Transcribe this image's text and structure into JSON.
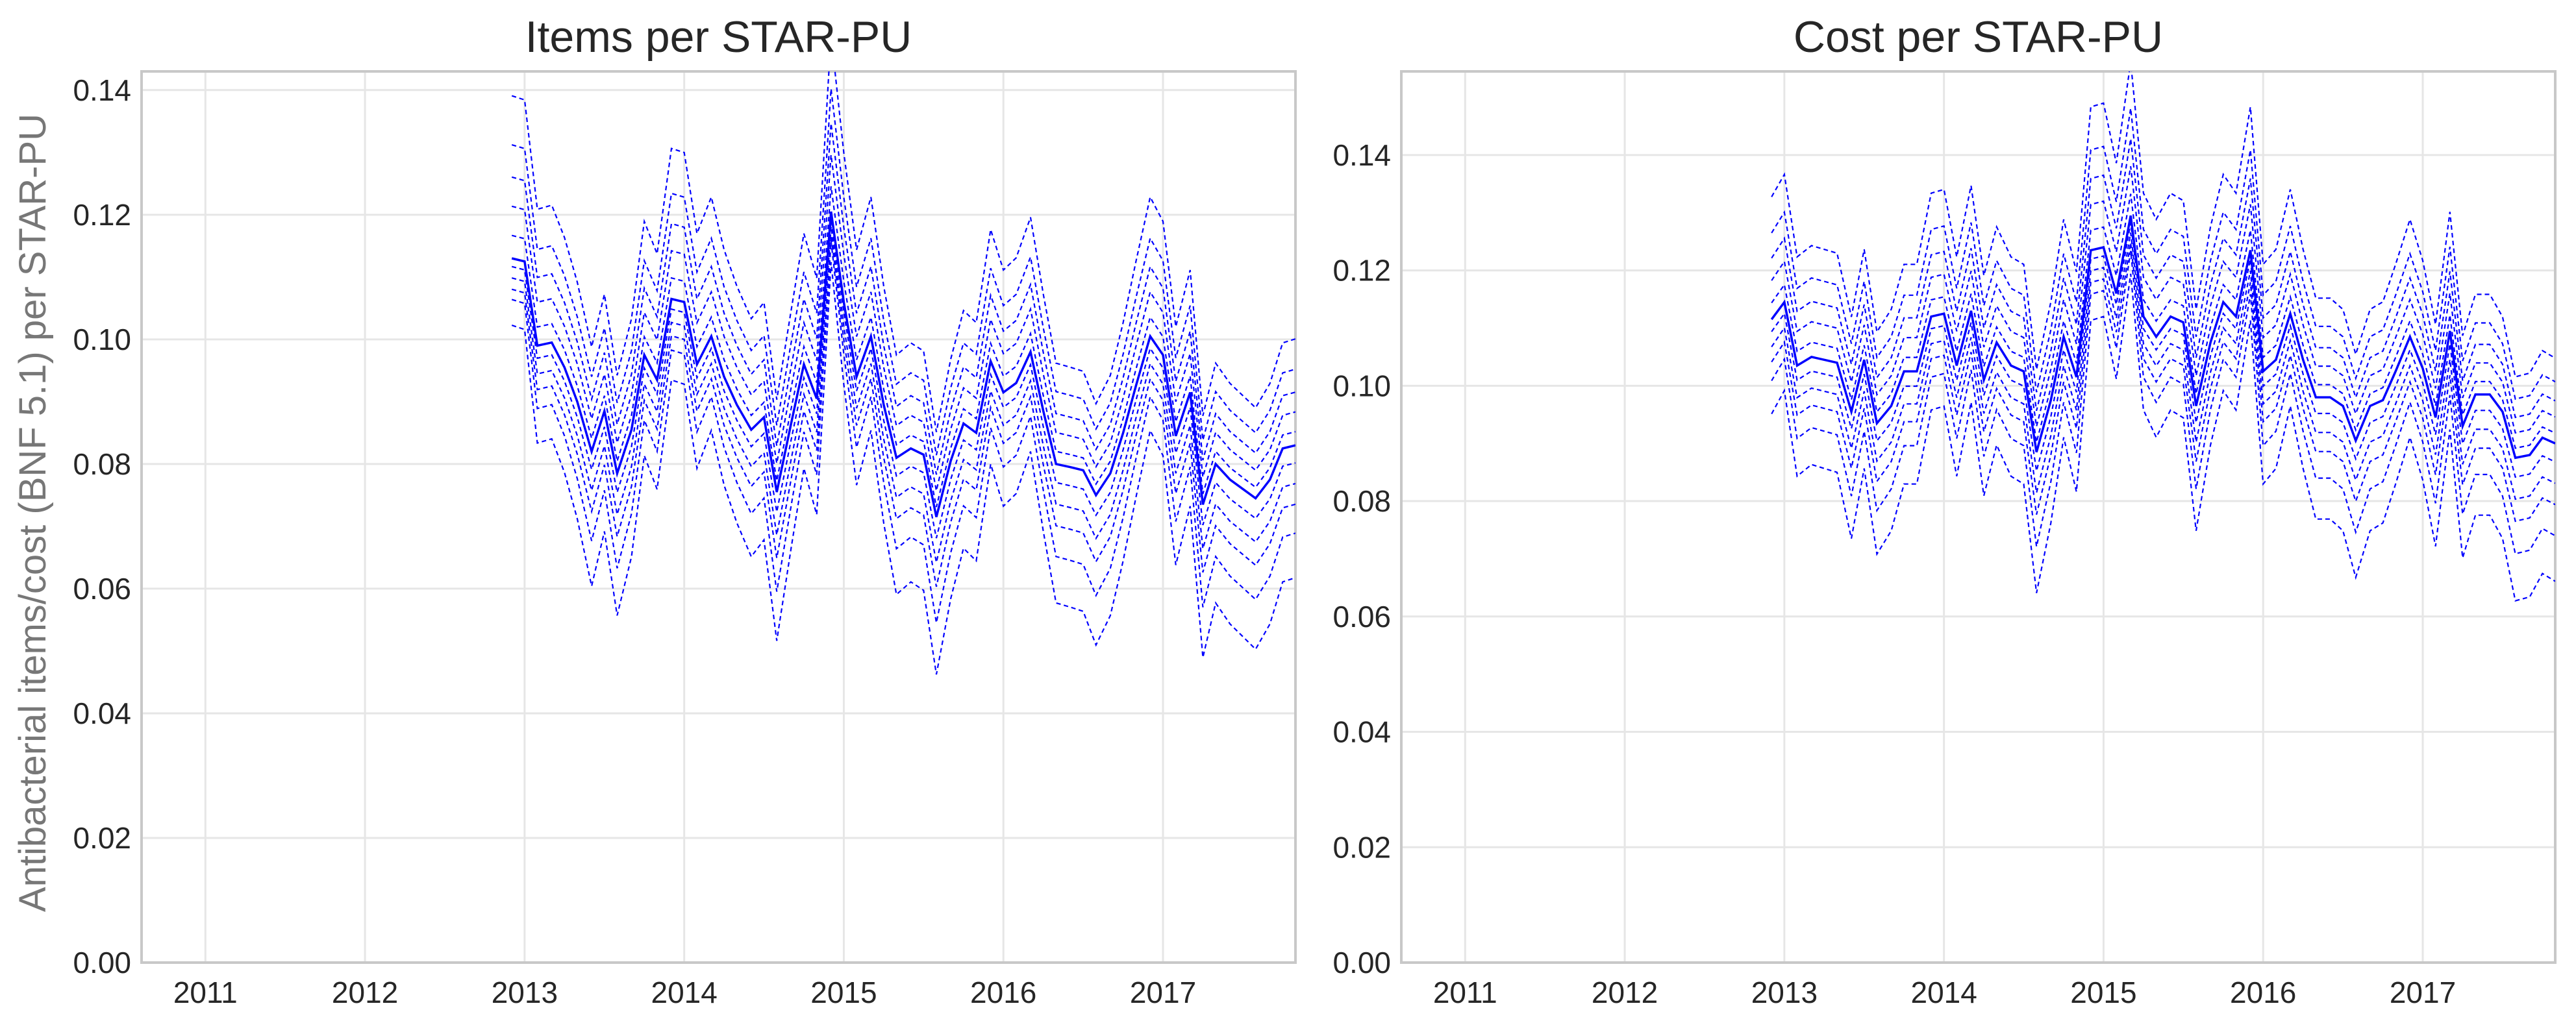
{
  "figure": {
    "ylabel": "Antibacterial items/cost (BNF 5.1) per STAR-PU"
  },
  "colors": {
    "series": "#0000ff",
    "grid": "#e6e6e6",
    "frame": "#c8c8c8",
    "text": "#262626",
    "ylabel": "#777777"
  },
  "chart_data": [
    {
      "type": "line",
      "title": "Items per STAR-PU",
      "xlabel": "",
      "ylabel": "Antibacterial items/cost (BNF 5.1) per STAR-PU",
      "xlim": [
        2010.6,
        2017.83
      ],
      "ylim": [
        0,
        0.143
      ],
      "x_ticks": [
        2011,
        2012,
        2013,
        2014,
        2015,
        2016,
        2017
      ],
      "x_tick_labels": [
        "2011",
        "2012",
        "2013",
        "2014",
        "2015",
        "2016",
        "2017"
      ],
      "y_ticks": [
        0,
        0.02,
        0.04,
        0.06,
        0.08,
        0.1,
        0.12,
        0.14
      ],
      "y_tick_labels": [
        "0.00",
        "0.02",
        "0.04",
        "0.06",
        "0.08",
        "0.10",
        "0.12",
        "0.14"
      ],
      "grid": true,
      "legend": "none",
      "x": [
        2012.92,
        2013.0,
        2013.08,
        2013.17,
        2013.25,
        2013.33,
        2013.42,
        2013.5,
        2013.58,
        2013.67,
        2013.75,
        2013.83,
        2013.92,
        2014.0,
        2014.08,
        2014.17,
        2014.25,
        2014.33,
        2014.42,
        2014.5,
        2014.58,
        2014.67,
        2014.75,
        2014.83,
        2014.92,
        2015.0,
        2015.08,
        2015.17,
        2015.25,
        2015.33,
        2015.42,
        2015.5,
        2015.58,
        2015.67,
        2015.75,
        2015.83,
        2015.92,
        2016.0,
        2016.08,
        2016.17,
        2016.25,
        2016.33,
        2016.42,
        2016.5,
        2016.58,
        2016.67,
        2016.75,
        2016.83,
        2016.92,
        2017.0,
        2017.08,
        2017.17,
        2017.25,
        2017.33,
        2017.42,
        2017.5,
        2017.58,
        2017.67,
        2017.75,
        2017.83
      ],
      "median": [
        0.113,
        0.1125,
        0.099,
        0.0995,
        0.0955,
        0.09,
        0.082,
        0.0885,
        0.0785,
        0.0855,
        0.0975,
        0.0935,
        0.1065,
        0.106,
        0.096,
        0.1005,
        0.094,
        0.0895,
        0.0855,
        0.0875,
        0.0755,
        0.0865,
        0.096,
        0.0905,
        0.1205,
        0.106,
        0.094,
        0.1005,
        0.0895,
        0.081,
        0.0825,
        0.0815,
        0.0715,
        0.0805,
        0.0865,
        0.085,
        0.0965,
        0.0915,
        0.093,
        0.098,
        0.0885,
        0.08,
        0.0795,
        0.079,
        0.075,
        0.0785,
        0.085,
        0.0925,
        0.1005,
        0.0975,
        0.0845,
        0.0915,
        0.0735,
        0.08,
        0.0775,
        0.076,
        0.0745,
        0.0775,
        0.0825,
        0.083
      ],
      "deciles": [
        {
          "offset": -0.019,
          "amplitude": 1.35
        },
        {
          "offset": -0.0125,
          "amplitude": 1.25
        },
        {
          "offset": -0.0085,
          "amplitude": 1.15
        },
        {
          "offset": -0.0055,
          "amplitude": 1.1
        },
        {
          "offset": -0.0025,
          "amplitude": 1.05
        },
        {
          "offset": 0.0025,
          "amplitude": 1.05
        },
        {
          "offset": 0.006,
          "amplitude": 1.1
        },
        {
          "offset": 0.0095,
          "amplitude": 1.15
        },
        {
          "offset": 0.0135,
          "amplitude": 1.2
        },
        {
          "offset": 0.019,
          "amplitude": 1.3
        }
      ]
    },
    {
      "type": "line",
      "title": "Cost per STAR-PU",
      "xlabel": "",
      "ylabel": "",
      "xlim": [
        2010.6,
        2017.83
      ],
      "ylim": [
        0,
        0.1545
      ],
      "x_ticks": [
        2011,
        2012,
        2013,
        2014,
        2015,
        2016,
        2017
      ],
      "x_tick_labels": [
        "2011",
        "2012",
        "2013",
        "2014",
        "2015",
        "2016",
        "2017"
      ],
      "y_ticks": [
        0,
        0.02,
        0.04,
        0.06,
        0.08,
        0.1,
        0.12,
        0.14
      ],
      "y_tick_labels": [
        "0.00",
        "0.02",
        "0.04",
        "0.06",
        "0.08",
        "0.10",
        "0.12",
        "0.14"
      ],
      "grid": true,
      "legend": "none",
      "x": [
        2012.92,
        2013.0,
        2013.08,
        2013.17,
        2013.25,
        2013.33,
        2013.42,
        2013.5,
        2013.58,
        2013.67,
        2013.75,
        2013.83,
        2013.92,
        2014.0,
        2014.08,
        2014.17,
        2014.25,
        2014.33,
        2014.42,
        2014.5,
        2014.58,
        2014.67,
        2014.75,
        2014.83,
        2014.92,
        2015.0,
        2015.08,
        2015.17,
        2015.25,
        2015.33,
        2015.42,
        2015.5,
        2015.58,
        2015.67,
        2015.75,
        2015.83,
        2015.92,
        2016.0,
        2016.08,
        2016.17,
        2016.25,
        2016.33,
        2016.42,
        2016.5,
        2016.58,
        2016.67,
        2016.75,
        2016.83,
        2016.92,
        2017.0,
        2017.08,
        2017.17,
        2017.25,
        2017.33,
        2017.42,
        2017.5,
        2017.58,
        2017.67,
        2017.75,
        2017.83
      ],
      "median": [
        0.1115,
        0.1145,
        0.1035,
        0.105,
        0.1045,
        0.104,
        0.0955,
        0.1045,
        0.0935,
        0.0965,
        0.1025,
        0.1025,
        0.112,
        0.1125,
        0.1035,
        0.113,
        0.101,
        0.1075,
        0.1035,
        0.1025,
        0.0885,
        0.0975,
        0.1085,
        0.1015,
        0.1235,
        0.124,
        0.116,
        0.1295,
        0.112,
        0.1085,
        0.112,
        0.111,
        0.0965,
        0.1075,
        0.1145,
        0.112,
        0.1235,
        0.1025,
        0.1045,
        0.1125,
        0.1045,
        0.098,
        0.098,
        0.0965,
        0.0905,
        0.0965,
        0.0975,
        0.1025,
        0.1085,
        0.103,
        0.0945,
        0.1095,
        0.093,
        0.0985,
        0.0985,
        0.0955,
        0.0875,
        0.088,
        0.091,
        0.09
      ],
      "deciles": [
        {
          "offset": -0.019,
          "amplitude": 1.35
        },
        {
          "offset": -0.0125,
          "amplitude": 1.25
        },
        {
          "offset": -0.0085,
          "amplitude": 1.15
        },
        {
          "offset": -0.0055,
          "amplitude": 1.1
        },
        {
          "offset": -0.0025,
          "amplitude": 1.05
        },
        {
          "offset": 0.0025,
          "amplitude": 1.05
        },
        {
          "offset": 0.006,
          "amplitude": 1.1
        },
        {
          "offset": 0.0095,
          "amplitude": 1.15
        },
        {
          "offset": 0.0135,
          "amplitude": 1.2
        },
        {
          "offset": 0.019,
          "amplitude": 1.3
        }
      ]
    }
  ]
}
